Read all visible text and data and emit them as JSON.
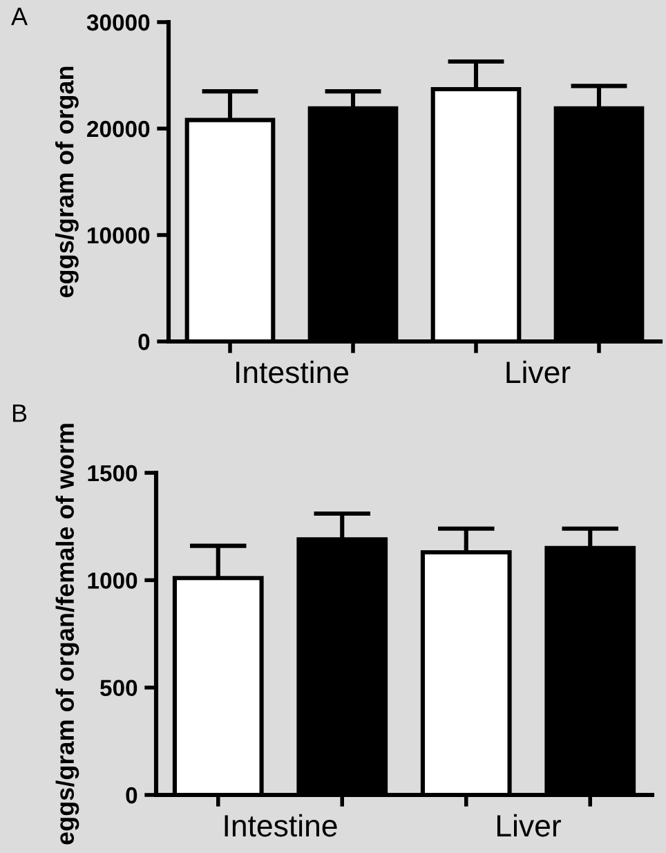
{
  "chart_data": [
    {
      "type": "bar",
      "annotations": [
        "A"
      ],
      "ylabel": "eggs/gram of organ",
      "categories": [
        "Intestine",
        "Liver"
      ],
      "ylim": [
        0,
        30000
      ],
      "yticks": [
        0,
        10000,
        20000,
        30000
      ],
      "grid": false,
      "legend": false,
      "series": [
        {
          "color": "#ffffff",
          "values": [
            20800,
            23700
          ],
          "errors": [
            [
              20800,
              23500
            ],
            [
              23700,
              26300
            ]
          ]
        },
        {
          "color": "#000000",
          "values": [
            21900,
            21900
          ],
          "errors": [
            [
              21900,
              23500
            ],
            [
              21900,
              24000
            ]
          ]
        }
      ]
    },
    {
      "type": "bar",
      "annotations": [
        "B"
      ],
      "ylabel": "eggs/gram of organ/female of worm",
      "categories": [
        "Intestine",
        "Liver"
      ],
      "ylim": [
        0,
        1500
      ],
      "yticks": [
        0,
        500,
        1000,
        1500
      ],
      "grid": false,
      "legend": false,
      "series": [
        {
          "color": "#ffffff",
          "values": [
            1010,
            1130
          ],
          "errors": [
            [
              1010,
              1160
            ],
            [
              1130,
              1240
            ]
          ]
        },
        {
          "color": "#000000",
          "values": [
            1190,
            1150
          ],
          "errors": [
            [
              1190,
              1310
            ],
            [
              1150,
              1240
            ]
          ]
        }
      ]
    }
  ]
}
